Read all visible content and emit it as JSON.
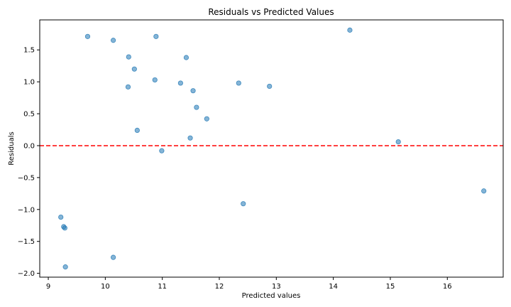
{
  "chart_data": {
    "type": "scatter",
    "title": "Residuals vs Predicted Values",
    "xlabel": "Predicted values",
    "ylabel": "Residuals",
    "xlim": [
      8.85,
      16.98
    ],
    "ylim": [
      -2.06,
      1.97
    ],
    "xticks": [
      9,
      10,
      11,
      12,
      13,
      14,
      15,
      16
    ],
    "yticks": [
      -2.0,
      -1.5,
      -1.0,
      -0.5,
      0.0,
      0.5,
      1.0,
      1.5
    ],
    "xtick_labels": [
      "9",
      "10",
      "11",
      "12",
      "13",
      "14",
      "15",
      "16"
    ],
    "ytick_labels": [
      "−2.0",
      "−1.5",
      "−1.0",
      "−0.5",
      "0.0",
      "0.5",
      "1.0",
      "1.5"
    ],
    "grid": false,
    "reference_line": {
      "y": 0,
      "style": "dashed",
      "color": "#ff0000"
    },
    "point_color": "#1f77b4",
    "points": [
      {
        "x": 9.69,
        "y": 1.71
      },
      {
        "x": 10.14,
        "y": 1.65
      },
      {
        "x": 10.89,
        "y": 1.71
      },
      {
        "x": 14.29,
        "y": 1.81
      },
      {
        "x": 10.41,
        "y": 1.39
      },
      {
        "x": 11.42,
        "y": 1.38
      },
      {
        "x": 10.51,
        "y": 1.2
      },
      {
        "x": 10.87,
        "y": 1.03
      },
      {
        "x": 10.4,
        "y": 0.92
      },
      {
        "x": 11.32,
        "y": 0.98
      },
      {
        "x": 12.34,
        "y": 0.98
      },
      {
        "x": 12.88,
        "y": 0.93
      },
      {
        "x": 11.54,
        "y": 0.86
      },
      {
        "x": 11.6,
        "y": 0.6
      },
      {
        "x": 11.78,
        "y": 0.42
      },
      {
        "x": 10.56,
        "y": 0.24
      },
      {
        "x": 11.49,
        "y": 0.12
      },
      {
        "x": 15.14,
        "y": 0.06
      },
      {
        "x": 10.99,
        "y": -0.08
      },
      {
        "x": 16.64,
        "y": -0.71
      },
      {
        "x": 12.42,
        "y": -0.91
      },
      {
        "x": 9.22,
        "y": -1.12
      },
      {
        "x": 9.27,
        "y": -1.27
      },
      {
        "x": 9.29,
        "y": -1.29
      },
      {
        "x": 10.14,
        "y": -1.75
      },
      {
        "x": 9.3,
        "y": -1.9
      }
    ]
  }
}
